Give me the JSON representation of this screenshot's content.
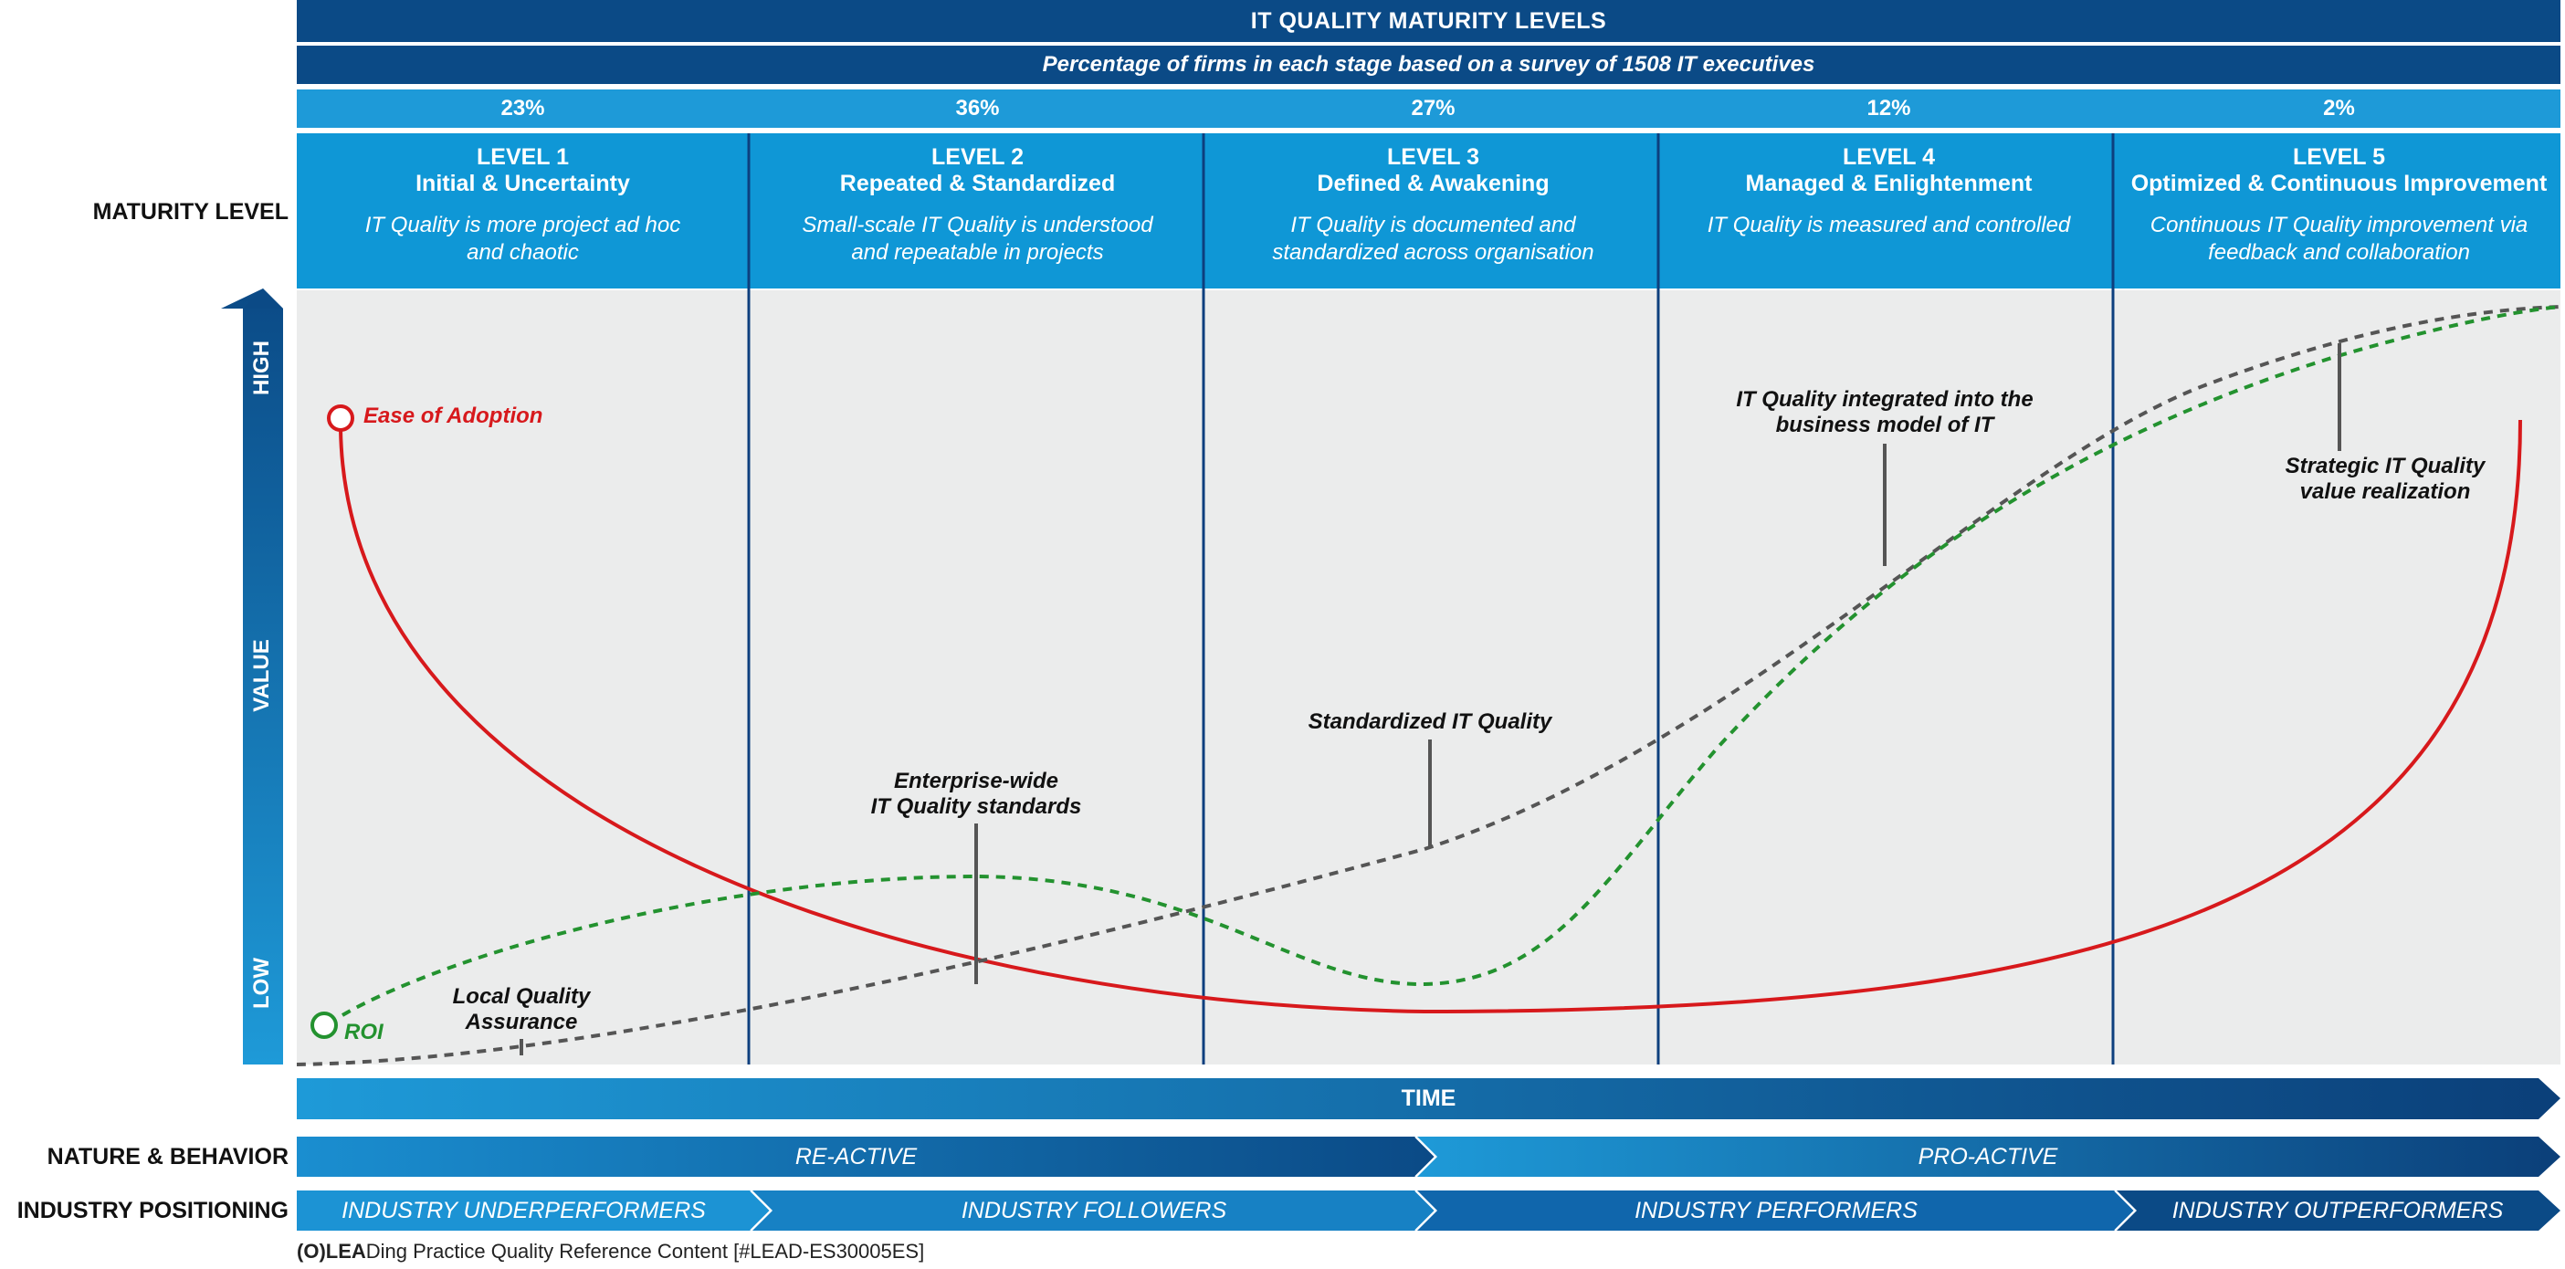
{
  "header": {
    "title": "IT QUALITY MATURITY LEVELS",
    "subtitle": "Percentage of firms in each stage based on a survey of 1508 IT executives"
  },
  "labels": {
    "maturity_level": "MATURITY LEVEL",
    "nature_behavior": "NATURE & BEHAVIOR",
    "industry_positioning": "INDUSTRY POSITIONING"
  },
  "levels": [
    {
      "percent": "23%",
      "number": "LEVEL 1",
      "name": "Initial & Uncertainty",
      "desc_line1": "IT Quality is more project ad hoc",
      "desc_line2": "and chaotic"
    },
    {
      "percent": "36%",
      "number": "LEVEL 2",
      "name": "Repeated & Standardized",
      "desc_line1": "Small-scale IT Quality is understood",
      "desc_line2": "and repeatable in projects"
    },
    {
      "percent": "27%",
      "number": "LEVEL 3",
      "name": "Defined & Awakening",
      "desc_line1": "IT Quality is documented and",
      "desc_line2": "standardized across organisation"
    },
    {
      "percent": "12%",
      "number": "LEVEL 4",
      "name": "Managed & Enlightenment",
      "desc_line1": "IT Quality is measured and controlled",
      "desc_line2": ""
    },
    {
      "percent": "2%",
      "number": "LEVEL 5",
      "name": "Optimized & Continuous Improvement",
      "desc_line1": "Continuous IT Quality improvement via",
      "desc_line2": "feedback and collaboration"
    }
  ],
  "axis": {
    "high": "HIGH",
    "value": "VALUE",
    "low": "LOW",
    "time": "TIME"
  },
  "legend": {
    "ease_of_adoption": "Ease of Adoption",
    "roi": "ROI"
  },
  "colors": {
    "ease_of_adoption": "#d7191c",
    "roi": "#23922f",
    "value_curve": "#555555",
    "dark_blue": "#0b4a86",
    "light_blue": "#1e9ad8"
  },
  "annotations": {
    "local_qa_1": "Local Quality",
    "local_qa_2": "Assurance",
    "enterprise_1": "Enterprise-wide",
    "enterprise_2": "IT Quality standards",
    "standardized": "Standardized IT Quality",
    "integrated_1": "IT Quality integrated into the",
    "integrated_2": "business model of IT",
    "strategic_1": "Strategic IT Quality",
    "strategic_2": "value realization"
  },
  "behavior": {
    "reactive": "RE-ACTIVE",
    "proactive": "PRO-ACTIVE"
  },
  "positioning": {
    "underperformers": "INDUSTRY UNDERPERFORMERS",
    "followers": "INDUSTRY FOLLOWERS",
    "performers": "INDUSTRY PERFORMERS",
    "outperformers": "INDUSTRY OUTPERFORMERS"
  },
  "footer": {
    "logo": "(O)LEA",
    "text": "Ding Practice Quality Reference Content [#LEAD-ES30005ES]"
  }
}
